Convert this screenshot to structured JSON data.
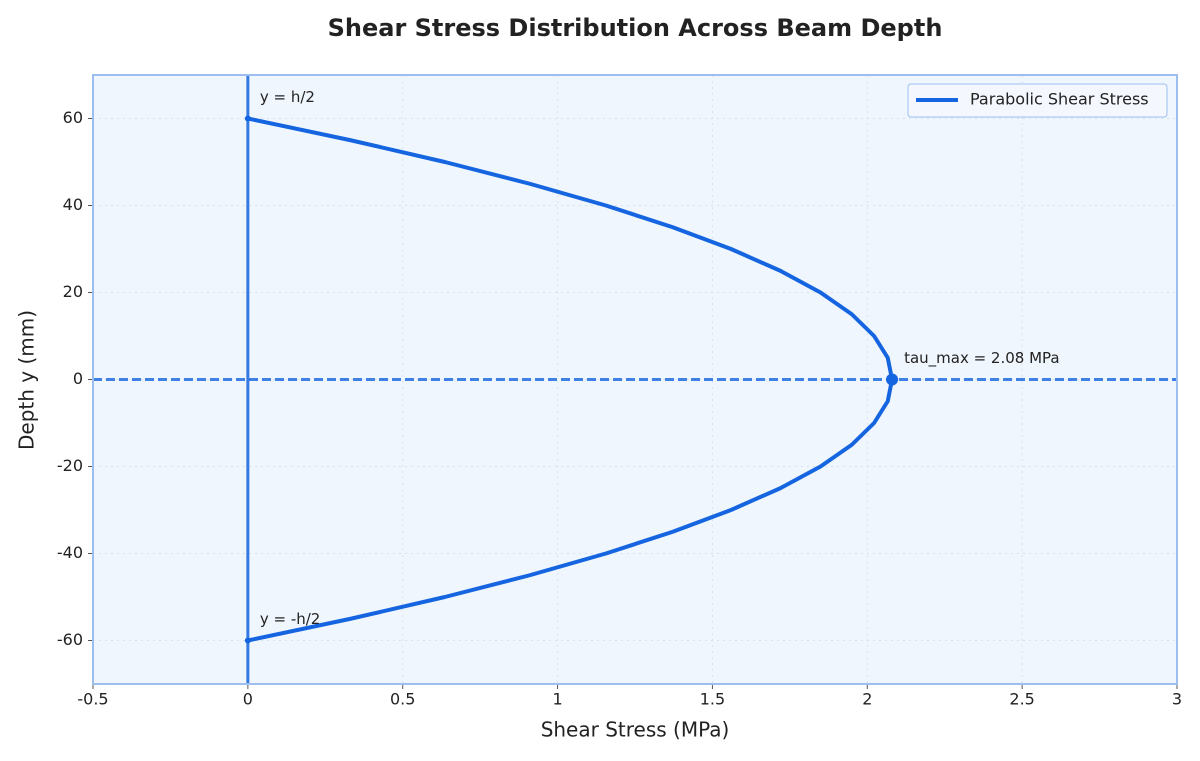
{
  "chart_data": {
    "type": "line",
    "title": "Shear Stress Distribution Across Beam Depth",
    "x_label": "Shear Stress (MPa)",
    "y_label": "Depth y (mm)",
    "xlim": [
      -0.5,
      3
    ],
    "ylim": [
      -70,
      70
    ],
    "xticks": [
      -0.5,
      0,
      0.5,
      1,
      1.5,
      2,
      2.5,
      3
    ],
    "yticks": [
      -60,
      -40,
      -20,
      0,
      20,
      40,
      60
    ],
    "grid": true,
    "legend": "upper right",
    "series": [
      {
        "name": "Parabolic Shear Stress",
        "color": "#1565e0",
        "x": [
          0,
          0.332,
          0.636,
          0.91,
          1.156,
          1.372,
          1.56,
          1.719,
          1.849,
          1.95,
          2.022,
          2.066,
          2.08,
          2.066,
          2.022,
          1.95,
          1.849,
          1.719,
          1.56,
          1.372,
          1.156,
          0.91,
          0.636,
          0.332,
          0
        ],
        "y": [
          -60,
          -55,
          -50,
          -45,
          -40,
          -35,
          -30,
          -25,
          -20,
          -15,
          -10,
          -5,
          0,
          5,
          10,
          15,
          20,
          25,
          30,
          35,
          40,
          45,
          50,
          55,
          60
        ]
      }
    ],
    "reference_lines": {
      "x": 0,
      "y": 0
    },
    "annotations": [
      {
        "text": "y = h/2",
        "x": 0,
        "y": 60
      },
      {
        "text": "y = -h/2",
        "x": 0,
        "y": -60
      },
      {
        "text": "tau_max = 2.08 MPa",
        "x": 2.08,
        "y": 0
      }
    ]
  }
}
